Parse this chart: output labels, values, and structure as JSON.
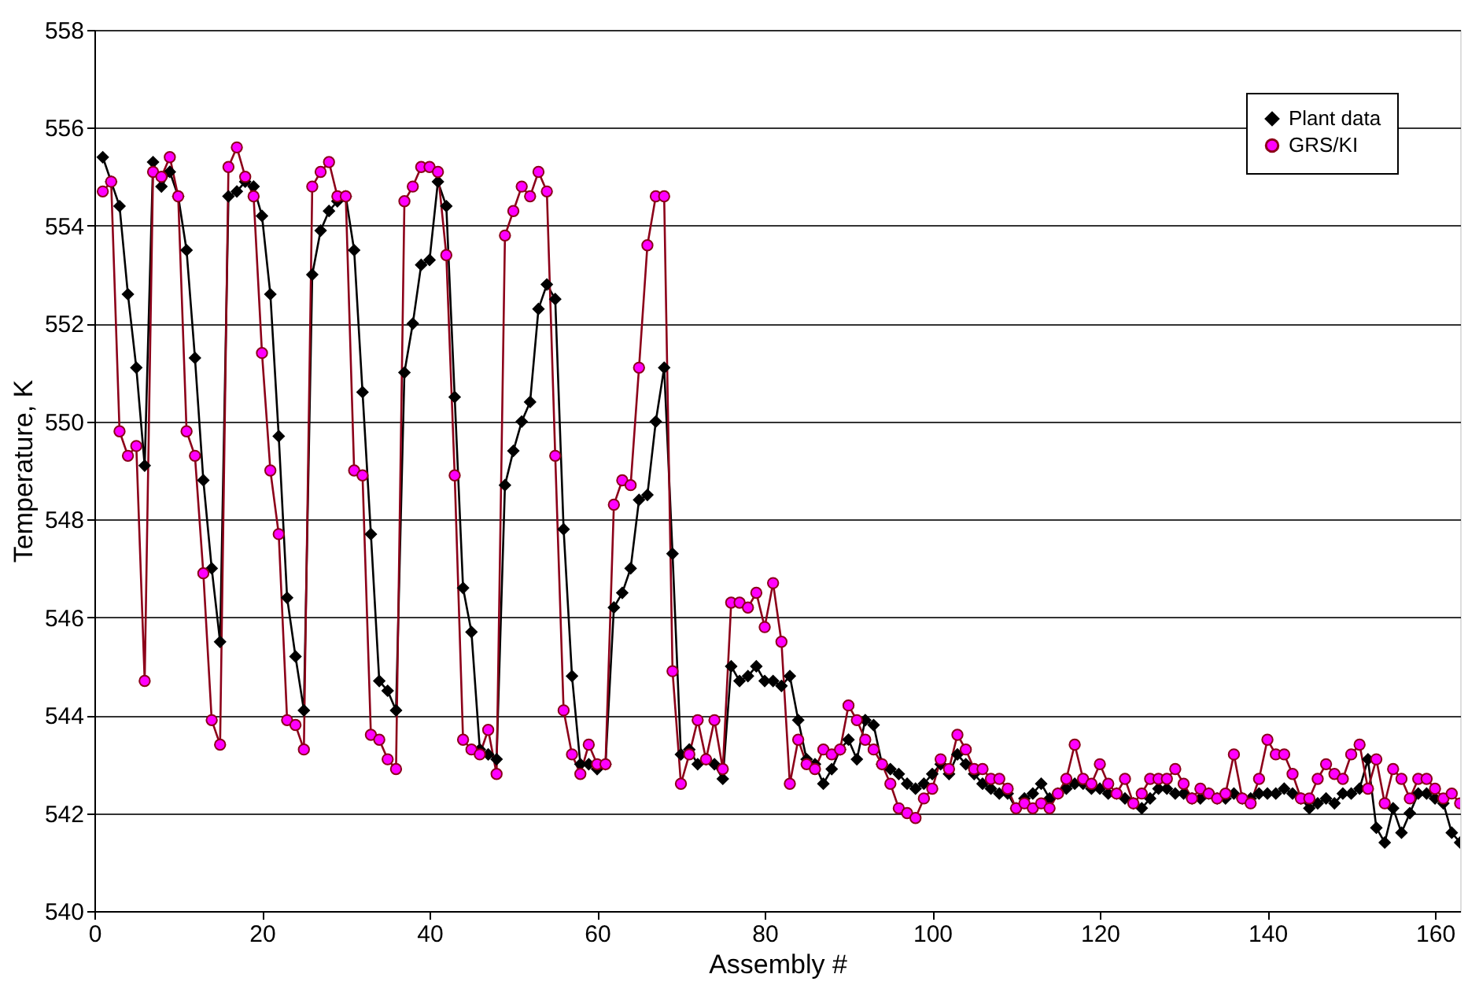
{
  "chart_data": {
    "type": "line",
    "xlabel": "Assembly #",
    "ylabel": "Temperature, K",
    "xlim": [
      0,
      163
    ],
    "xticks": [
      0,
      20,
      40,
      60,
      80,
      100,
      120,
      140,
      160
    ],
    "ylim": [
      540,
      558
    ],
    "yticks": [
      540,
      542,
      544,
      546,
      548,
      550,
      552,
      554,
      556,
      558
    ],
    "grid": "y",
    "legend": "top right",
    "x": [
      1,
      2,
      3,
      4,
      5,
      6,
      7,
      8,
      9,
      10,
      11,
      12,
      13,
      14,
      15,
      16,
      17,
      18,
      19,
      20,
      21,
      22,
      23,
      24,
      25,
      26,
      27,
      28,
      29,
      30,
      31,
      32,
      33,
      34,
      35,
      36,
      37,
      38,
      39,
      40,
      41,
      42,
      43,
      44,
      45,
      46,
      47,
      48,
      49,
      50,
      51,
      52,
      53,
      54,
      55,
      56,
      57,
      58,
      59,
      60,
      61,
      62,
      63,
      64,
      65,
      66,
      67,
      68,
      69,
      70,
      71,
      72,
      73,
      74,
      75,
      76,
      77,
      78,
      79,
      80,
      81,
      82,
      83,
      84,
      85,
      86,
      87,
      88,
      89,
      90,
      91,
      92,
      93,
      94,
      95,
      96,
      97,
      98,
      99,
      100,
      101,
      102,
      103,
      104,
      105,
      106,
      107,
      108,
      109,
      110,
      111,
      112,
      113,
      114,
      115,
      116,
      117,
      118,
      119,
      120,
      121,
      122,
      123,
      124,
      125,
      126,
      127,
      128,
      129,
      130,
      131,
      132,
      133,
      134,
      135,
      136,
      137,
      138,
      139,
      140,
      141,
      142,
      143,
      144,
      145,
      146,
      147,
      148,
      149,
      150,
      151,
      152,
      153,
      154,
      155,
      156,
      157,
      158,
      159,
      160,
      161,
      162,
      163
    ],
    "series": [
      {
        "name": "Plant data",
        "color": "#000000",
        "marker": "diamond",
        "values": [
          555.4,
          554.9,
          554.4,
          552.6,
          551.1,
          549.1,
          555.3,
          554.8,
          555.1,
          554.6,
          553.5,
          551.3,
          548.8,
          547.0,
          545.5,
          554.6,
          554.7,
          554.9,
          554.8,
          554.2,
          552.6,
          549.7,
          546.4,
          545.2,
          544.1,
          553.0,
          553.9,
          554.3,
          554.5,
          554.6,
          553.5,
          550.6,
          547.7,
          544.7,
          544.5,
          544.1,
          551.0,
          552.0,
          553.2,
          553.3,
          554.9,
          554.4,
          550.5,
          546.6,
          545.7,
          543.3,
          543.2,
          543.1,
          548.7,
          549.4,
          550.0,
          550.4,
          552.3,
          552.8,
          552.5,
          547.8,
          544.8,
          543.0,
          543.0,
          542.9,
          543.0,
          546.2,
          546.5,
          547.0,
          548.4,
          548.5,
          550.0,
          551.1,
          547.3,
          543.2,
          543.3,
          543.0,
          543.1,
          543.0,
          542.7,
          545.0,
          544.7,
          544.8,
          545.0,
          544.7,
          544.7,
          544.6,
          544.8,
          543.9,
          543.1,
          543.0,
          542.6,
          542.9,
          543.3,
          543.5,
          543.1,
          543.9,
          543.8,
          543.0,
          542.9,
          542.8,
          542.6,
          542.5,
          542.6,
          542.8,
          543.0,
          542.8,
          543.2,
          543.0,
          542.8,
          542.6,
          542.5,
          542.4,
          542.4,
          542.1,
          542.3,
          542.4,
          542.6,
          542.3,
          542.4,
          542.5,
          542.6,
          542.6,
          542.5,
          542.5,
          542.4,
          542.4,
          542.3,
          542.2,
          542.1,
          542.3,
          542.5,
          542.5,
          542.4,
          542.4,
          542.3,
          542.3,
          542.4,
          542.3,
          542.3,
          542.4,
          542.3,
          542.3,
          542.4,
          542.4,
          542.4,
          542.5,
          542.4,
          542.3,
          542.1,
          542.2,
          542.3,
          542.2,
          542.4,
          542.4,
          542.5,
          543.1,
          541.7,
          541.4,
          542.1,
          541.6,
          542.0,
          542.4,
          542.4,
          542.3,
          542.2,
          541.6,
          541.4
        ]
      },
      {
        "name": "GRS/KI",
        "color": "#ff00ff",
        "marker": "circle",
        "values": [
          554.7,
          554.9,
          549.8,
          549.3,
          549.5,
          544.7,
          555.1,
          555.0,
          555.4,
          554.6,
          549.8,
          549.3,
          546.9,
          543.9,
          543.4,
          555.2,
          555.6,
          555.0,
          554.6,
          551.4,
          549.0,
          547.7,
          543.9,
          543.8,
          543.3,
          554.8,
          555.1,
          555.3,
          554.6,
          554.6,
          549.0,
          548.9,
          543.6,
          543.5,
          543.1,
          542.9,
          554.5,
          554.8,
          555.2,
          555.2,
          555.1,
          553.4,
          548.9,
          543.5,
          543.3,
          543.2,
          543.7,
          542.8,
          553.8,
          554.3,
          554.8,
          554.6,
          555.1,
          554.7,
          549.3,
          544.1,
          543.2,
          542.8,
          543.4,
          543.0,
          543.0,
          548.3,
          548.8,
          548.7,
          551.1,
          553.6,
          554.6,
          554.6,
          544.9,
          542.6,
          543.2,
          543.9,
          543.1,
          543.9,
          542.9,
          546.3,
          546.3,
          546.2,
          546.5,
          545.8,
          546.7,
          545.5,
          542.6,
          543.5,
          543.0,
          542.9,
          543.3,
          543.2,
          543.3,
          544.2,
          543.9,
          543.5,
          543.3,
          543.0,
          542.6,
          542.1,
          542.0,
          541.9,
          542.3,
          542.5,
          543.1,
          542.9,
          543.6,
          543.3,
          542.9,
          542.9,
          542.7,
          542.7,
          542.5,
          542.1,
          542.2,
          542.1,
          542.2,
          542.1,
          542.4,
          542.7,
          543.4,
          542.7,
          542.6,
          543.0,
          542.6,
          542.4,
          542.7,
          542.2,
          542.4,
          542.7,
          542.7,
          542.7,
          542.9,
          542.6,
          542.3,
          542.5,
          542.4,
          542.3,
          542.4,
          543.2,
          542.3,
          542.2,
          542.7,
          543.5,
          543.2,
          543.2,
          542.8,
          542.3,
          542.3,
          542.7,
          543.0,
          542.8,
          542.7,
          543.2,
          543.4,
          542.5,
          543.1,
          542.2,
          542.9,
          542.7,
          542.3,
          542.7,
          542.7,
          542.5,
          542.3,
          542.4,
          542.2
        ]
      }
    ]
  }
}
